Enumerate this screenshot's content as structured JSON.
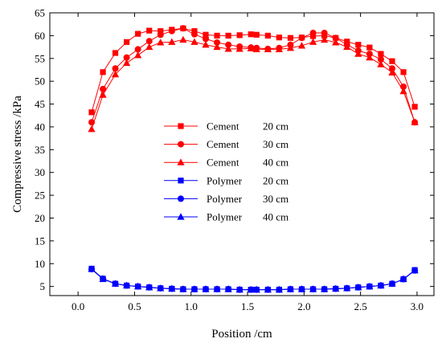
{
  "chart_data": {
    "type": "line",
    "title": "",
    "xlabel": "Position /cm",
    "ylabel": "Compressive stress /kPa",
    "xlim": [
      -0.25,
      3.15
    ],
    "ylim": [
      3,
      65
    ],
    "xticks": [
      0.0,
      0.5,
      1.0,
      1.5,
      2.0,
      2.5,
      3.0
    ],
    "xtick_labels": [
      "0.0",
      "0.5",
      "1.0",
      "1.5",
      "2.0",
      "2.5",
      "3.0"
    ],
    "yticks": [
      5,
      10,
      15,
      20,
      25,
      30,
      35,
      40,
      45,
      50,
      55,
      60,
      65
    ],
    "ytick_labels": [
      "5",
      "10",
      "15",
      "20",
      "25",
      "30",
      "35",
      "40",
      "45",
      "50",
      "55",
      "60",
      "65"
    ],
    "grid": false,
    "legend_position": "center-left",
    "x": [
      0.12,
      0.22,
      0.33,
      0.43,
      0.53,
      0.63,
      0.73,
      0.83,
      0.93,
      1.03,
      1.13,
      1.23,
      1.33,
      1.43,
      1.53,
      1.58,
      1.68,
      1.78,
      1.88,
      1.98,
      2.08,
      2.18,
      2.28,
      2.38,
      2.48,
      2.58,
      2.68,
      2.78,
      2.88,
      2.98
    ],
    "series": [
      {
        "name": "Cement",
        "depth": "20 cm",
        "color": "#ff0000",
        "marker": "square",
        "values": [
          43.2,
          52.0,
          56.2,
          58.6,
          60.4,
          61.1,
          61.0,
          61.3,
          61.6,
          61.0,
          60.2,
          60.0,
          60.0,
          60.1,
          60.3,
          60.2,
          60.0,
          59.6,
          59.5,
          59.6,
          59.9,
          60.0,
          59.5,
          58.7,
          58.0,
          57.4,
          56.0,
          54.4,
          52.0,
          44.4
        ]
      },
      {
        "name": "Cement",
        "depth": "30 cm",
        "color": "#ff0000",
        "marker": "circle",
        "values": [
          41.0,
          48.3,
          52.8,
          55.2,
          57.0,
          58.8,
          60.2,
          61.0,
          61.6,
          60.3,
          59.3,
          58.5,
          58.0,
          57.6,
          57.4,
          57.3,
          57.1,
          57.3,
          58.0,
          59.5,
          60.6,
          60.6,
          59.5,
          58.0,
          56.7,
          56.0,
          54.8,
          52.8,
          48.8,
          41.0
        ]
      },
      {
        "name": "Cement",
        "depth": "40 cm",
        "color": "#ff0000",
        "marker": "triangle",
        "values": [
          39.5,
          47.0,
          51.5,
          54.0,
          55.7,
          57.5,
          58.5,
          58.6,
          59.1,
          58.6,
          58.0,
          57.5,
          57.1,
          57.1,
          57.2,
          57.0,
          57.0,
          57.0,
          57.3,
          57.8,
          58.6,
          59.1,
          58.5,
          57.5,
          56.0,
          55.2,
          53.7,
          51.9,
          47.8,
          41.0
        ]
      },
      {
        "name": "Polymer",
        "depth": "20 cm",
        "color": "#0000ff",
        "marker": "square",
        "values": [
          8.9,
          6.7,
          5.6,
          5.2,
          5.0,
          4.8,
          4.6,
          4.5,
          4.4,
          4.4,
          4.4,
          4.4,
          4.4,
          4.3,
          4.3,
          4.3,
          4.3,
          4.3,
          4.4,
          4.4,
          4.4,
          4.4,
          4.5,
          4.6,
          4.8,
          5.0,
          5.2,
          5.6,
          6.6,
          8.6
        ]
      },
      {
        "name": "Polymer",
        "depth": "30 cm",
        "color": "#0000ff",
        "marker": "circle",
        "values": [
          8.8,
          6.7,
          5.6,
          5.2,
          5.0,
          4.8,
          4.6,
          4.5,
          4.4,
          4.4,
          4.4,
          4.4,
          4.4,
          4.3,
          4.3,
          4.3,
          4.3,
          4.3,
          4.4,
          4.4,
          4.4,
          4.4,
          4.5,
          4.6,
          4.8,
          5.0,
          5.2,
          5.6,
          6.6,
          8.5
        ]
      },
      {
        "name": "Polymer",
        "depth": "40 cm",
        "color": "#0000ff",
        "marker": "triangle",
        "values": [
          8.8,
          6.6,
          5.6,
          5.2,
          5.0,
          4.8,
          4.6,
          4.5,
          4.4,
          4.4,
          4.4,
          4.4,
          4.4,
          4.3,
          4.3,
          4.3,
          4.3,
          4.3,
          4.4,
          4.4,
          4.4,
          4.4,
          4.5,
          4.6,
          4.8,
          5.0,
          5.2,
          5.6,
          6.6,
          8.5
        ]
      }
    ]
  }
}
